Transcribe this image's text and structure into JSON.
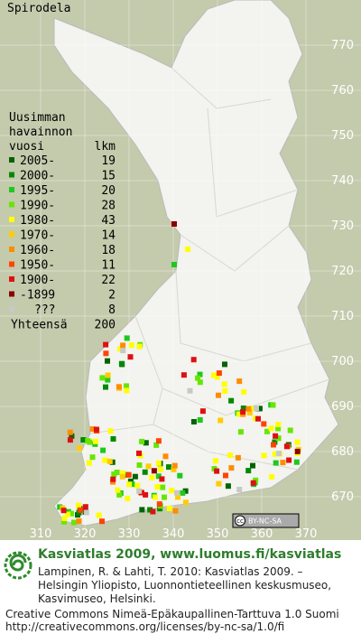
{
  "title": "Spirodela",
  "legend": {
    "heading": [
      "Uusimman",
      "havainnon",
      "vuosi"
    ],
    "count_heading": "lkm",
    "rows": [
      {
        "label": "2005-",
        "count": 19,
        "color": "#006400"
      },
      {
        "label": "2000-",
        "count": 15,
        "color": "#008a00"
      },
      {
        "label": "1995-",
        "count": 20,
        "color": "#1ec81e"
      },
      {
        "label": "1990-",
        "count": 28,
        "color": "#66e600"
      },
      {
        "label": "1980-",
        "count": 43,
        "color": "#ffff00"
      },
      {
        "label": "1970-",
        "count": 14,
        "color": "#ffcc00"
      },
      {
        "label": "1960-",
        "count": 18,
        "color": "#ff8c00"
      },
      {
        "label": "1950-",
        "count": 11,
        "color": "#ff4400"
      },
      {
        "label": "1900-",
        "count": 22,
        "color": "#dd1111"
      },
      {
        "label": "-1899",
        "count": 2,
        "color": "#8b0000"
      },
      {
        "label": "???",
        "count": 8,
        "color": "#c8c8c8"
      }
    ],
    "total_label": "Yhteensä",
    "total": 200
  },
  "map": {
    "y_grid_labels": [
      770,
      760,
      750,
      740,
      730,
      720,
      710,
      700,
      690,
      680,
      670
    ],
    "x_grid_labels": [
      310,
      320,
      330,
      340,
      350,
      360,
      370
    ],
    "badge": [
      "cc",
      "BY-NC-SA"
    ]
  },
  "credits": {
    "title": "Kasviatlas 2009, www.luomus.fi/kasviatlas",
    "citation": [
      "Lampinen, R. & Lahti, T. 2010: Kasviatlas 2009. –",
      "Helsingin Yliopisto, Luonnontieteellinen keskusmuseo,",
      "Kasvimuseo, Helsinki."
    ],
    "license": [
      "Creative Commons Nimeä-Epäkaupallinen-Tarttuva 1.0 Suomi",
      "http://creativecommons.org/licenses/by-nc-sa/1.0/fi"
    ]
  }
}
